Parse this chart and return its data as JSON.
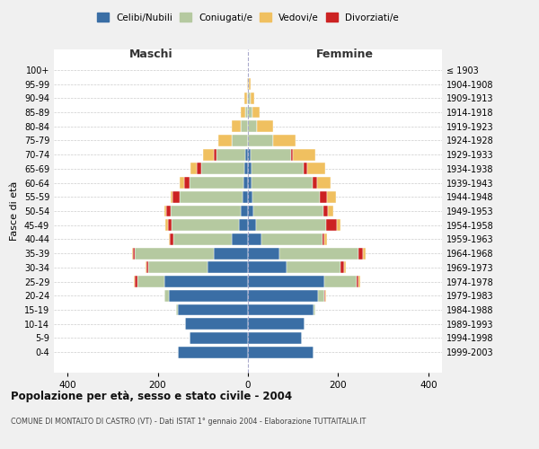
{
  "age_groups": [
    "0-4",
    "5-9",
    "10-14",
    "15-19",
    "20-24",
    "25-29",
    "30-34",
    "35-39",
    "40-44",
    "45-49",
    "50-54",
    "55-59",
    "60-64",
    "65-69",
    "70-74",
    "75-79",
    "80-84",
    "85-89",
    "90-94",
    "95-99",
    "100+"
  ],
  "birth_years": [
    "1999-2003",
    "1994-1998",
    "1989-1993",
    "1984-1988",
    "1979-1983",
    "1974-1978",
    "1969-1973",
    "1964-1968",
    "1959-1963",
    "1954-1958",
    "1949-1953",
    "1944-1948",
    "1939-1943",
    "1934-1938",
    "1929-1933",
    "1924-1928",
    "1919-1923",
    "1914-1918",
    "1909-1913",
    "1904-1908",
    "≤ 1903"
  ],
  "colors": {
    "celibi": "#3a6ea5",
    "coniugati": "#b5c9a0",
    "vedovi": "#f0c060",
    "divorziati": "#cc2222"
  },
  "maschi": {
    "celibi": [
      155,
      130,
      140,
      155,
      175,
      185,
      90,
      75,
      35,
      20,
      16,
      12,
      10,
      8,
      5,
      0,
      0,
      0,
      0,
      0,
      0
    ],
    "coniugati": [
      0,
      0,
      0,
      5,
      10,
      60,
      130,
      175,
      130,
      150,
      155,
      140,
      120,
      95,
      65,
      35,
      15,
      5,
      2,
      0,
      0
    ],
    "vedovi": [
      0,
      0,
      0,
      0,
      0,
      2,
      2,
      2,
      2,
      5,
      5,
      5,
      10,
      15,
      25,
      30,
      20,
      10,
      5,
      2,
      0
    ],
    "divorziati": [
      0,
      0,
      0,
      0,
      0,
      5,
      5,
      5,
      8,
      8,
      10,
      15,
      12,
      10,
      5,
      0,
      0,
      0,
      0,
      0,
      0
    ]
  },
  "femmine": {
    "celibi": [
      145,
      120,
      125,
      145,
      155,
      170,
      85,
      70,
      30,
      18,
      12,
      10,
      8,
      8,
      5,
      0,
      0,
      0,
      0,
      0,
      0
    ],
    "coniugati": [
      0,
      0,
      0,
      5,
      15,
      70,
      120,
      175,
      135,
      155,
      155,
      150,
      135,
      115,
      90,
      55,
      20,
      10,
      5,
      2,
      0
    ],
    "vedovi": [
      0,
      0,
      0,
      0,
      2,
      3,
      3,
      5,
      5,
      8,
      12,
      20,
      30,
      40,
      50,
      50,
      35,
      15,
      8,
      3,
      0
    ],
    "divorziati": [
      0,
      0,
      0,
      0,
      2,
      5,
      8,
      10,
      5,
      25,
      10,
      15,
      10,
      8,
      5,
      0,
      0,
      0,
      0,
      0,
      0
    ]
  },
  "title": "Popolazione per età, sesso e stato civile - 2004",
  "subtitle": "COMUNE DI MONTALTO DI CASTRO (VT) - Dati ISTAT 1° gennaio 2004 - Elaborazione TUTTAITALIA.IT",
  "xlabel_left": "Maschi",
  "xlabel_right": "Femmine",
  "ylabel_left": "Fasce di età",
  "xlim": 430,
  "background_color": "#f0f0f0",
  "plot_background": "#ffffff",
  "legend_labels": [
    "Celibi/Nubili",
    "Coniugati/e",
    "Vedovi/e",
    "Divorziati/e"
  ]
}
